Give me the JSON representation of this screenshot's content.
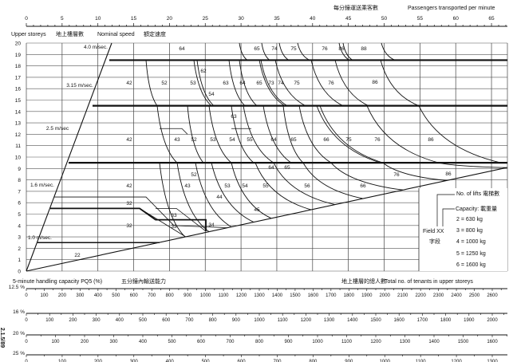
{
  "top_axis": {
    "title_zh": "每分鐘運送乘客數",
    "title_en": "Passengers transported per minute",
    "ticks": [
      "0",
      "5",
      "10",
      "15",
      "20",
      "25",
      "30",
      "35",
      "40",
      "45",
      "50",
      "55",
      "60",
      "65"
    ]
  },
  "left_axis": {
    "title_en": "Upper storeys",
    "title_zh": "地上樓層數",
    "ticks": [
      "0",
      "1",
      "2",
      "3",
      "4",
      "5",
      "6",
      "7",
      "8",
      "9",
      "10",
      "11",
      "12",
      "13",
      "14",
      "15",
      "16",
      "17",
      "18",
      "19",
      "20"
    ]
  },
  "speed_header": {
    "title_en": "Nominal speed",
    "title_zh": "額定速度"
  },
  "speeds": [
    "4.0 m/sec.",
    "3.15 m/sec.",
    "2.5 m/sec",
    "1.6 m/sec.",
    "1.0 m/sec."
  ],
  "field_labels": {
    "band_4_0": [
      "64",
      "65",
      "74",
      "75",
      "76",
      "86",
      "88"
    ],
    "band_3_15": [
      "42",
      "52",
      "53",
      "62",
      "54",
      "63",
      "64",
      "65",
      "73",
      "74",
      "75",
      "76",
      "86"
    ],
    "band_2_5": [
      "63",
      "42",
      "43",
      "52",
      "53",
      "54",
      "55",
      "64",
      "65",
      "66",
      "75",
      "76",
      "86"
    ],
    "band_1_6": [
      "42",
      "52",
      "43",
      "53",
      "54",
      "44",
      "45",
      "64",
      "65",
      "55",
      "56",
      "66",
      "76",
      "86"
    ],
    "band_1_0": [
      "32",
      "33",
      "32",
      "33",
      "34",
      "22"
    ]
  },
  "legend": {
    "lifts": "No. of lifts 電梯數",
    "capacity": "Capacity: 載重量",
    "field_en": "Field XX",
    "field_zh": "字段",
    "items": [
      "2 =   630 kg",
      "3 =   800 kg",
      "4 = 1000 kg",
      "5 = 1250 kg",
      "6 = 1600 kg"
    ]
  },
  "bottom": {
    "title_left": "5-minute handling capacity PQ5 (%)",
    "title_left_zh": "五分鐘內輸送能力",
    "title_right_zh": "地上樓層的總人數",
    "title_right": "Total no. of tenants in upper storeys",
    "scales": [
      {
        "label": "12.5 %",
        "max": 2600
      },
      {
        "label": "16 %",
        "max": 2000
      },
      {
        "label": "20 %",
        "max": 1600
      },
      {
        "label": "25 %",
        "max": 1300
      }
    ]
  },
  "figure_id": "2.1.5/89"
}
